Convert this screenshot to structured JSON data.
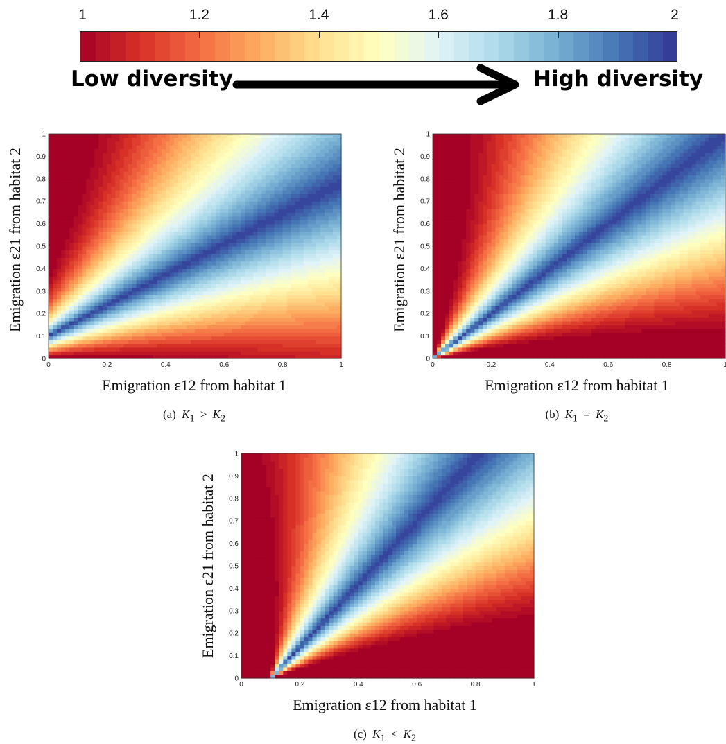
{
  "colorbar": {
    "tick_labels": [
      "1",
      "1.2",
      "1.4",
      "1.6",
      "1.8",
      "2"
    ],
    "ticks": [
      1,
      1.2,
      1.4,
      1.6,
      1.8,
      2
    ],
    "range": [
      1,
      2
    ],
    "levels": 40,
    "low_label": "Low diversity",
    "high_label": "High diversity",
    "colormap_stops": [
      "#a50026",
      "#d73027",
      "#f46d43",
      "#fdae61",
      "#fee090",
      "#ffffbf",
      "#e0f3f8",
      "#abd9e9",
      "#74add1",
      "#4575b4",
      "#313695"
    ]
  },
  "panels": [
    {
      "id": "a",
      "ylabel": "Emigration ε21 from habitat 2",
      "xlabel": "Emigration ε12 from habitat 1",
      "caption": "(a) K1 > K2",
      "caption_parts": {
        "prefix": "(a)",
        "left": "K",
        "left_sub": "1",
        "op": ">",
        "right": "K",
        "right_sub": "2"
      }
    },
    {
      "id": "b",
      "ylabel": "Emigration ε21 from habitat 2",
      "xlabel": "Emigration ε12 from habitat 1",
      "caption": "(b) K1 = K2",
      "caption_parts": {
        "prefix": "(b)",
        "left": "K",
        "left_sub": "1",
        "op": "=",
        "right": "K",
        "right_sub": "2"
      }
    },
    {
      "id": "c",
      "ylabel": "Emigration ε21 from habitat 2",
      "xlabel": "Emigration ε12 from habitat 1",
      "caption": "(c) K1 < K2",
      "caption_parts": {
        "prefix": "(c)",
        "left": "K",
        "left_sub": "1",
        "op": "<",
        "right": "K",
        "right_sub": "2"
      }
    }
  ],
  "chart_data": [
    {
      "type": "heatmap",
      "panel": "a",
      "x_range": [
        0,
        1
      ],
      "y_range": [
        0,
        1
      ],
      "x_ticks": [
        "0",
        "0.2",
        "0.4",
        "0.6",
        "0.8",
        "1"
      ],
      "y_ticks": [
        "0",
        "0.1",
        "0.2",
        "0.3",
        "0.4",
        "0.5",
        "0.6",
        "0.7",
        "0.8",
        "0.9",
        "1"
      ],
      "xlabel": "Emigration ε12 from habitat 1",
      "ylabel": "Emigration ε21 from habitat 2",
      "value_range": [
        1,
        2
      ],
      "max_ridge": {
        "x_intercept": -0.15,
        "slope": 0.68
      },
      "description_of_pattern": "filled contour, high diversity (2) along a ridge from about (0, 0.22) toward (1, 0.9), falling to 1 away from the ridge"
    },
    {
      "type": "heatmap",
      "panel": "b",
      "x_range": [
        0,
        1
      ],
      "y_range": [
        0,
        1
      ],
      "x_ticks": [
        "0",
        "0.2",
        "0.4",
        "0.6",
        "0.8",
        "1"
      ],
      "y_ticks": [
        "0",
        "0.1",
        "0.2",
        "0.3",
        "0.4",
        "0.5",
        "0.6",
        "0.7",
        "0.8",
        "0.9",
        "1"
      ],
      "xlabel": "Emigration ε12 from habitat 1",
      "ylabel": "Emigration ε21 from habitat 2",
      "value_range": [
        1,
        2
      ],
      "max_ridge": {
        "x_intercept": 0,
        "slope": 1.0
      }
    },
    {
      "type": "heatmap",
      "panel": "c",
      "x_range": [
        0,
        1
      ],
      "y_range": [
        0,
        1
      ],
      "x_ticks": [
        "0",
        "0.2",
        "0.4",
        "0.6",
        "0.8",
        "1"
      ],
      "y_ticks": [
        "0",
        "0.1",
        "0.2",
        "0.3",
        "0.4",
        "0.5",
        "0.6",
        "0.7",
        "0.8",
        "0.9",
        "1"
      ],
      "xlabel": "Emigration ε12 from habitat 1",
      "ylabel": "Emigration ε21 from habitat 2",
      "value_range": [
        1,
        2
      ],
      "max_ridge": {
        "x_intercept": 0.1,
        "slope": 1.4
      }
    }
  ]
}
